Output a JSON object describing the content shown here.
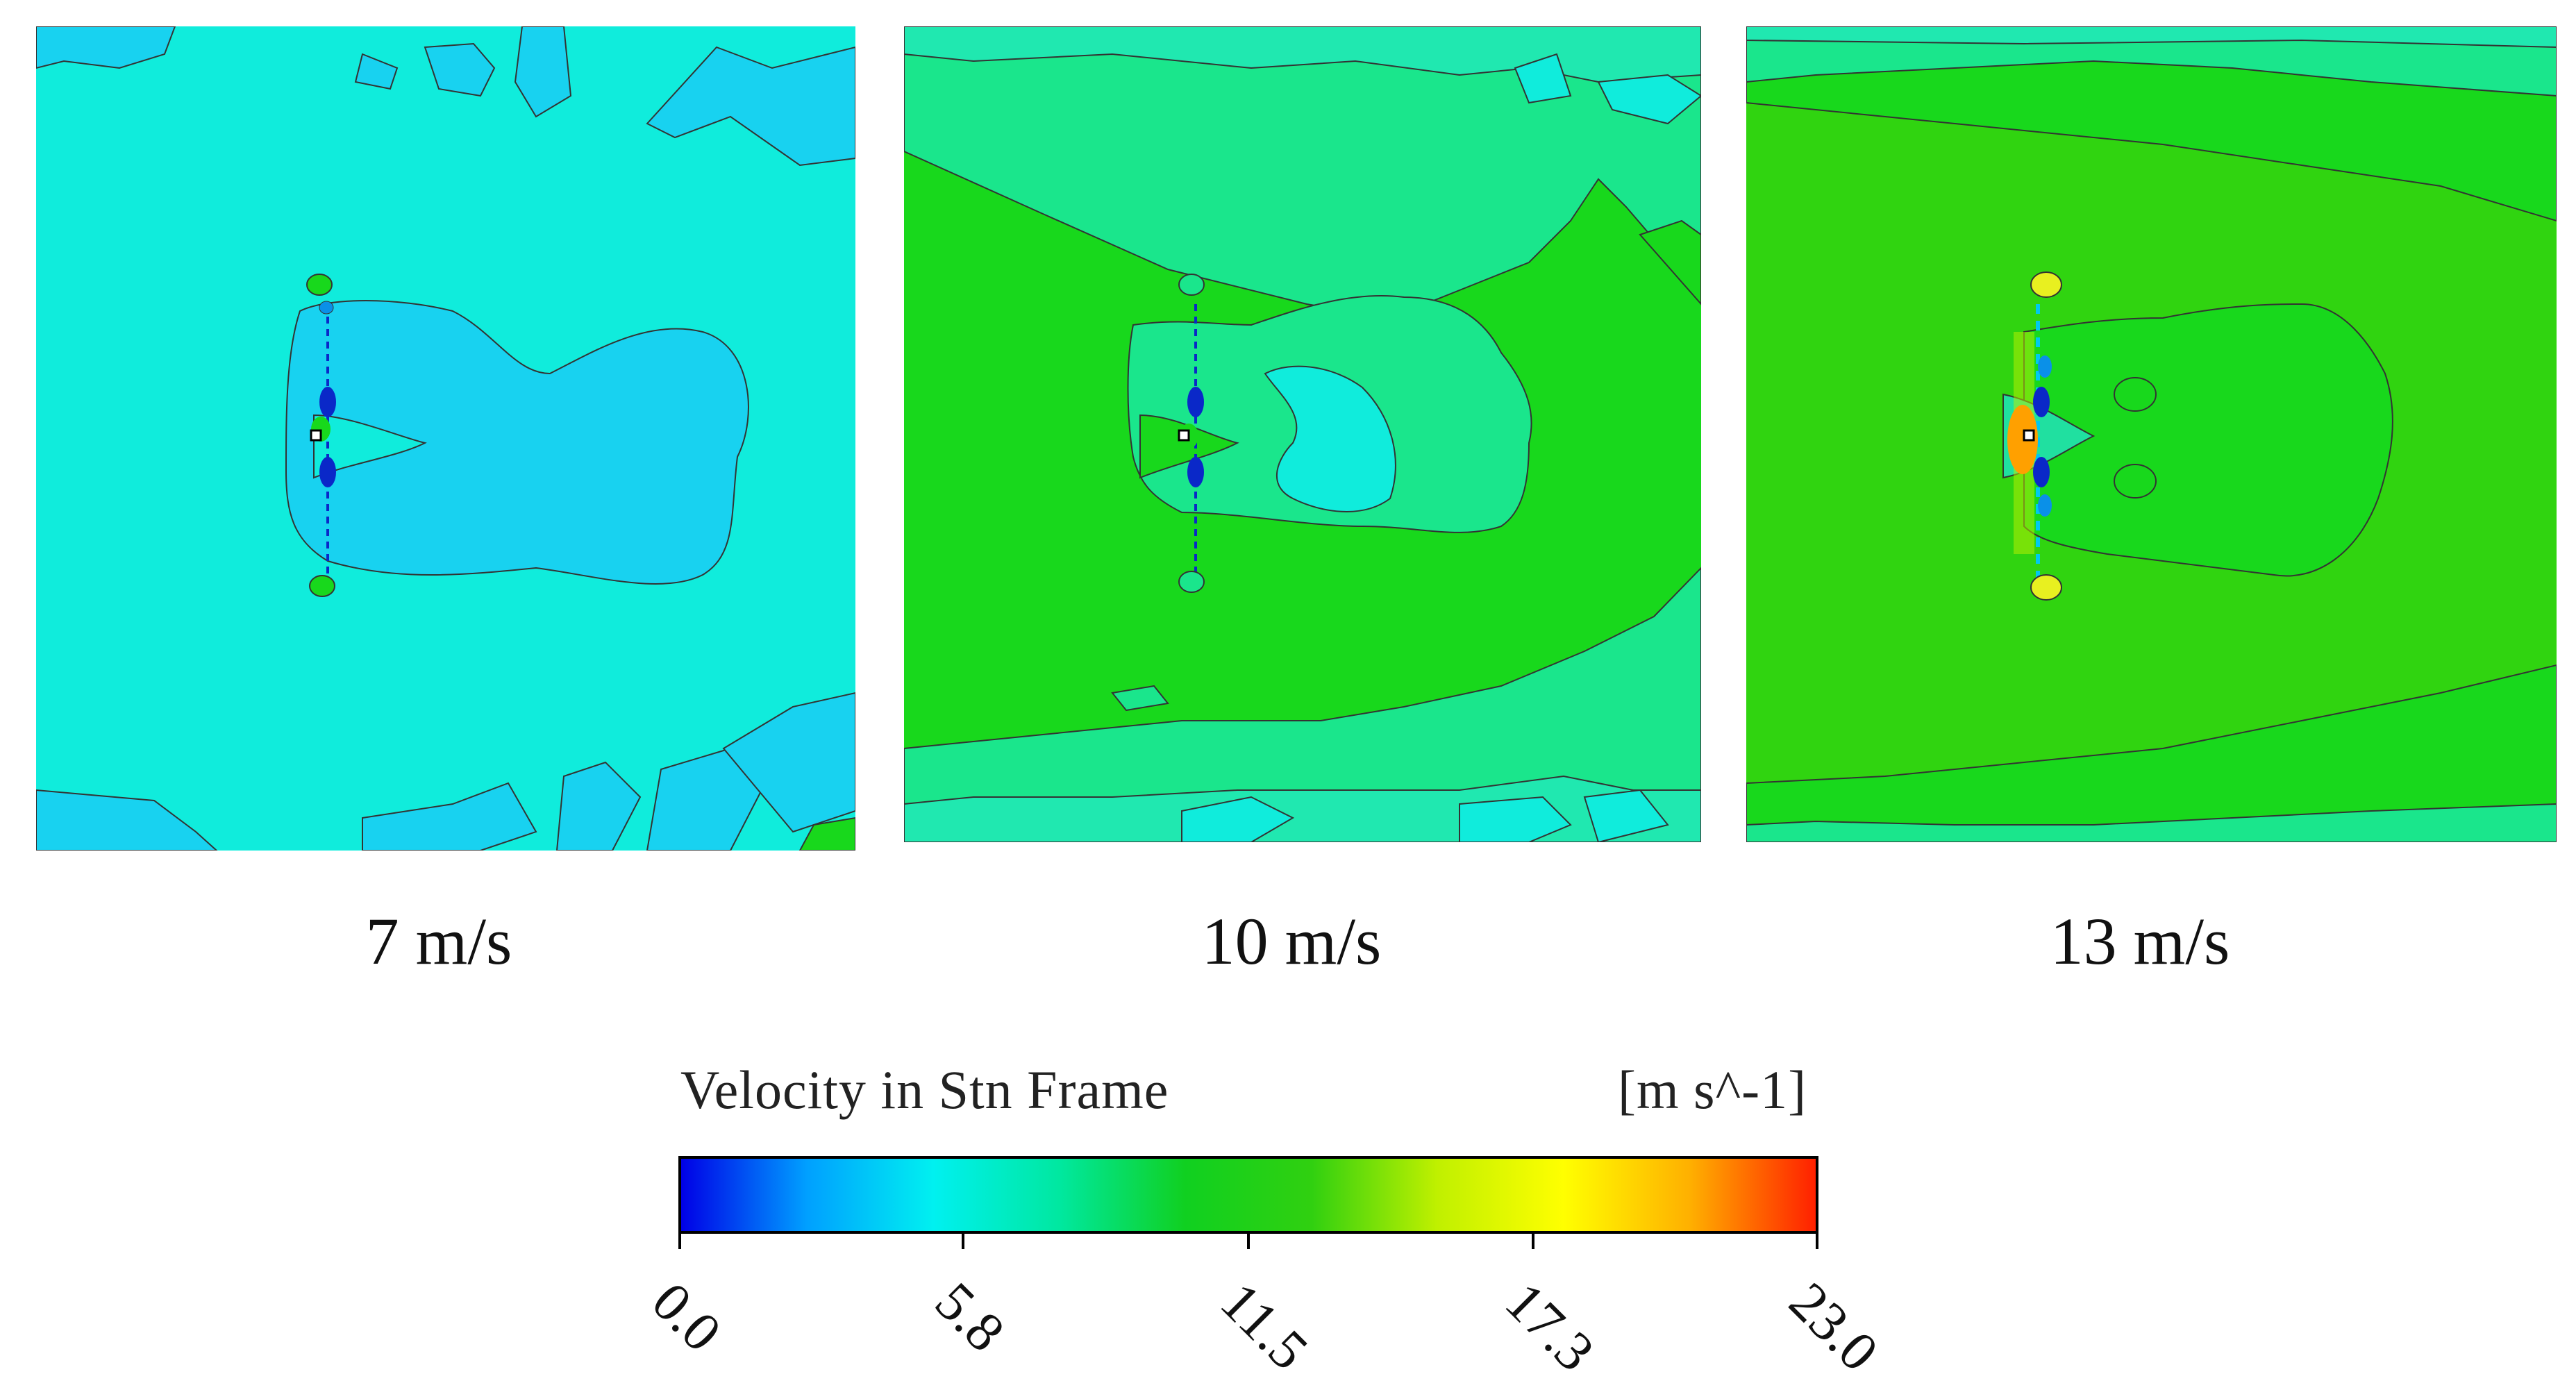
{
  "panels": [
    {
      "caption": "7 m/s",
      "wind_speed_ms": 7
    },
    {
      "caption": "10 m/s",
      "wind_speed_ms": 10
    },
    {
      "caption": "13 m/s",
      "wind_speed_ms": 13
    }
  ],
  "colorbar": {
    "title": "Velocity in Stn Frame",
    "unit": "[m s^-1]",
    "ticks": [
      "0.0",
      "5.8",
      "11.5",
      "17.3",
      "23.0"
    ],
    "range": [
      0.0,
      23.0
    ],
    "colors": [
      "#0000e6",
      "#00a0ff",
      "#00f0f0",
      "#00e8a0",
      "#10d020",
      "#30d010",
      "#c0f000",
      "#ffff00",
      "#ffb000",
      "#ff2000"
    ]
  },
  "fill_colors": {
    "cyan_blue": "#18d2f0",
    "light_cyan": "#10ecdc",
    "green": "#18d81c",
    "mint": "#1ae68c",
    "yellow": "#e8f020",
    "orange": "#ffa000",
    "dark_blue": "#0a28c8"
  }
}
